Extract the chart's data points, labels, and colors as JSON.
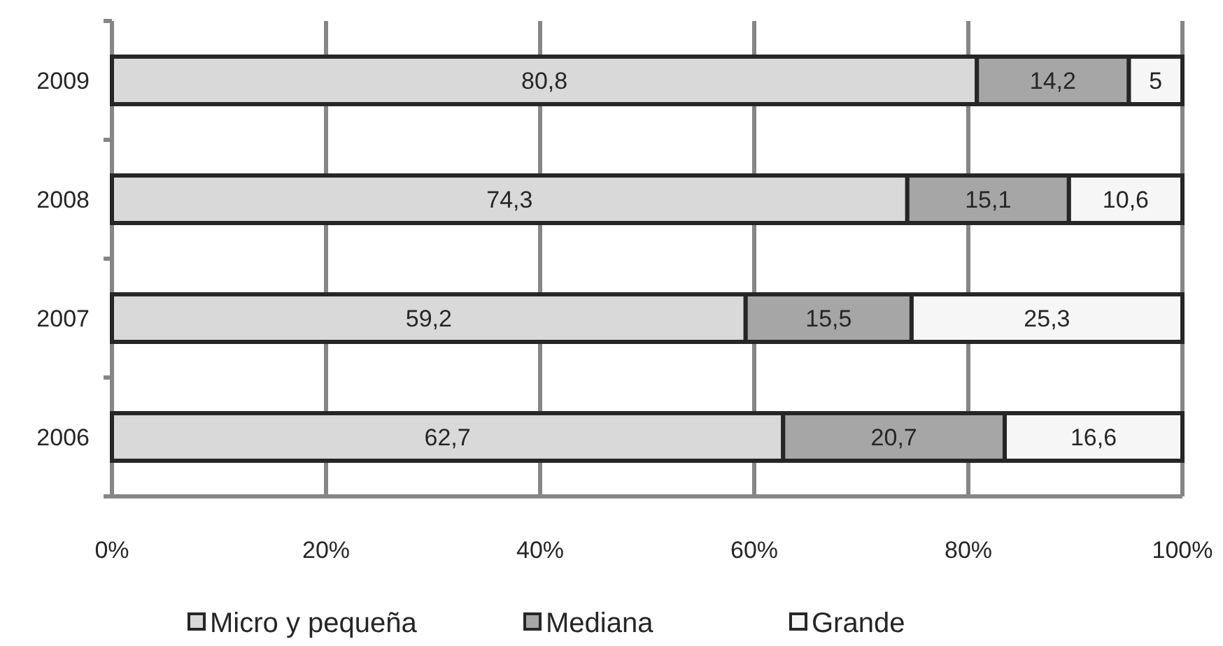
{
  "chart_data": {
    "type": "bar",
    "orientation": "horizontal",
    "stacked": true,
    "categories": [
      "2009",
      "2008",
      "2007",
      "2006"
    ],
    "series": [
      {
        "name": "Micro y pequeña",
        "color": "#d9d9d9",
        "values": [
          80.8,
          74.3,
          59.2,
          62.7
        ],
        "value_labels": [
          "80,8",
          "74,3",
          "59,2",
          "62,7"
        ]
      },
      {
        "name": "Mediana",
        "color": "#a6a6a6",
        "values": [
          14.2,
          15.1,
          15.5,
          20.7
        ],
        "value_labels": [
          "14,2",
          "15,1",
          "15,5",
          "20,7"
        ]
      },
      {
        "name": "Grande",
        "color": "#f6f6f6",
        "values": [
          5,
          10.6,
          25.3,
          16.6
        ],
        "value_labels": [
          "5",
          "10,6",
          "25,3",
          "16,6"
        ]
      }
    ],
    "xlim": [
      0,
      100
    ],
    "xticks": [
      {
        "value": 0,
        "label": "0%"
      },
      {
        "value": 20,
        "label": "20%"
      },
      {
        "value": 40,
        "label": "40%"
      },
      {
        "value": 60,
        "label": "60%"
      },
      {
        "value": 80,
        "label": "80%"
      },
      {
        "value": 100,
        "label": "100%"
      }
    ],
    "grid": "x",
    "legend": "bottom"
  }
}
